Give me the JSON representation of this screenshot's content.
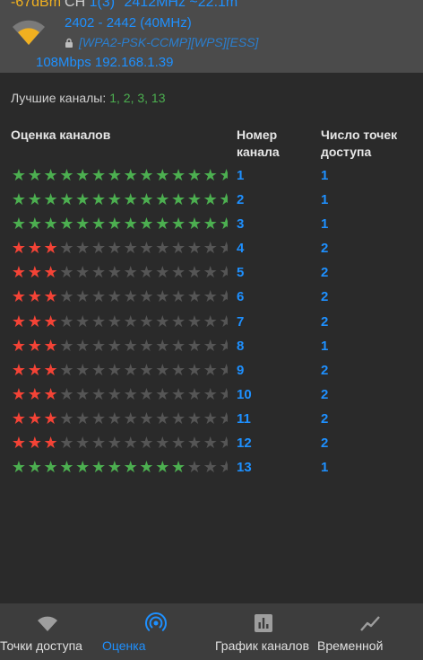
{
  "header": {
    "signal": "-67dBm",
    "ch_label": "CH",
    "channel": "1(3)",
    "frequency": "2412MHz ~22.1m",
    "band": "2402 - 2442 (40MHz)",
    "security": "[WPA2-PSK-CCMP][WPS][ESS]",
    "link": "108Mbps 192.168.1.39",
    "colors": {
      "signal": "#f0b020",
      "accent": "#1e90ff"
    }
  },
  "best_channels": {
    "label": "Лучшие каналы:",
    "value": "1, 2, 3, 13"
  },
  "table": {
    "col_rating": "Оценка каналов",
    "col_channel": "Номер канала",
    "col_ap": "Число точек доступа",
    "rows": [
      {
        "channel": "1",
        "ap": "1",
        "rating_color": "green",
        "stars": 14
      },
      {
        "channel": "2",
        "ap": "1",
        "rating_color": "green",
        "stars": 14
      },
      {
        "channel": "3",
        "ap": "1",
        "rating_color": "green",
        "stars": 14
      },
      {
        "channel": "4",
        "ap": "2",
        "rating_color": "red",
        "stars": 3
      },
      {
        "channel": "5",
        "ap": "2",
        "rating_color": "red",
        "stars": 3
      },
      {
        "channel": "6",
        "ap": "2",
        "rating_color": "red",
        "stars": 3
      },
      {
        "channel": "7",
        "ap": "2",
        "rating_color": "red",
        "stars": 3
      },
      {
        "channel": "8",
        "ap": "1",
        "rating_color": "red",
        "stars": 3
      },
      {
        "channel": "9",
        "ap": "2",
        "rating_color": "red",
        "stars": 3
      },
      {
        "channel": "10",
        "ap": "2",
        "rating_color": "red",
        "stars": 3
      },
      {
        "channel": "11",
        "ap": "2",
        "rating_color": "red",
        "stars": 3
      },
      {
        "channel": "12",
        "ap": "2",
        "rating_color": "red",
        "stars": 3
      },
      {
        "channel": "13",
        "ap": "1",
        "rating_color": "green",
        "stars": 11
      }
    ]
  },
  "bottom_nav": {
    "items": [
      {
        "label": "Точки доступа",
        "icon": "wifi-icon",
        "active": false
      },
      {
        "label": "Оценка",
        "icon": "radar-icon",
        "active": true
      },
      {
        "label": "График каналов",
        "icon": "bar-chart-icon",
        "active": false
      },
      {
        "label": "Временной",
        "icon": "line-chart-icon",
        "active": false
      }
    ]
  }
}
